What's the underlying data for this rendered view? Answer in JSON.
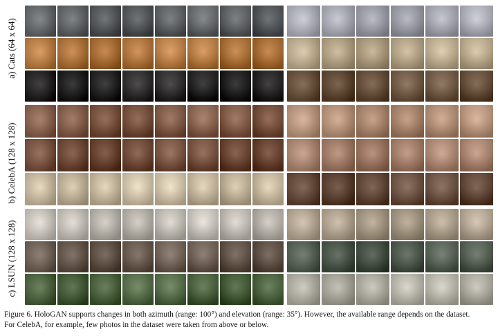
{
  "labels": {
    "cats": "a) Cats (64 x 64)",
    "celeba": "b) CelebA (128 x 128)",
    "lsun": "c) LSUN (128 x 128)"
  },
  "caption": {
    "line1": "Figure 6.  HoloGAN supports changes in both azimuth (range: 100°) and elevation (range: 35°). However, the available range depends on the dataset.",
    "line2": "For CelebA, for example, few photos in the dataset were taken from above or below."
  },
  "sections": [
    {
      "id": "cats",
      "rows": [
        {
          "left": "#5e6266",
          "right": "#b7b8c4"
        },
        {
          "left": "#c9803a",
          "right": "#cdb894"
        },
        {
          "left": "#1c1a1a",
          "right": "#6e5238"
        }
      ]
    },
    {
      "id": "celeba",
      "rows": [
        {
          "left": "#8a5a42",
          "right": "#c69a7c"
        },
        {
          "left": "#7a4a34",
          "right": "#b88a70"
        },
        {
          "left": "#e6d4b4",
          "right": "#6a4a36"
        }
      ]
    },
    {
      "id": "lsun",
      "rows": [
        {
          "left": "#d8d2c8",
          "right": "#bfae96"
        },
        {
          "left": "#6e5c4e",
          "right": "#4e5a4c"
        },
        {
          "left": "#4e6a3e",
          "right": "#c8c4b6"
        }
      ]
    }
  ]
}
